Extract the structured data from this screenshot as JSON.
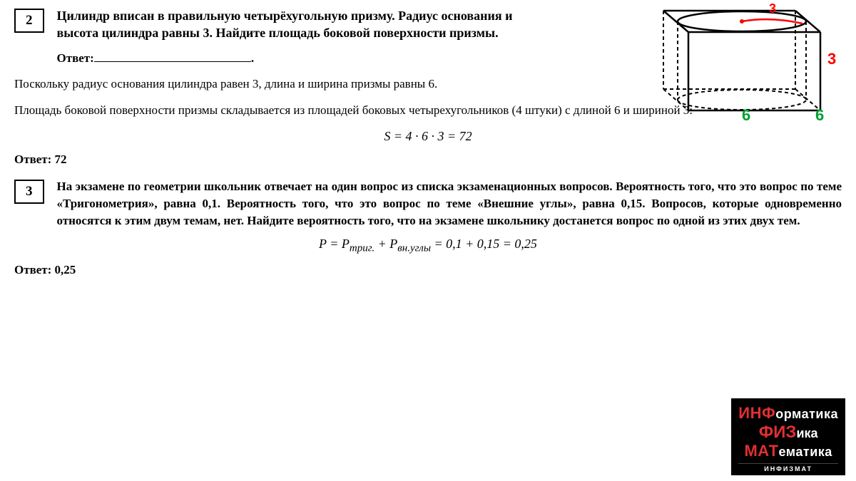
{
  "problem2": {
    "number": "2",
    "text": "Цилиндр вписан в правильную четырёхугольную призму. Радиус основания и высота цилиндра равны 3. Найдите площадь боковой поверхности призмы.",
    "answer_label": "Ответ:",
    "solution_line1": "Поскольку радиус основания цилиндра равен 3, длина и ширина призмы равны 6.",
    "solution_line2": "Площадь боковой поверхности призмы складывается из площадей боковых четырехугольников (4 штуки) с длиной 6 и шириной 3:",
    "formula": "S = 4 · 6 · 3 = 72",
    "final_answer": "Ответ: 72"
  },
  "problem3": {
    "number": "3",
    "text": "На экзамене по геометрии школьник отвечает на один вопрос из списка экзаменационных вопросов. Вероятность того, что это вопрос по теме «Тригонометрия», равна 0,1. Вероятность того, что это вопрос по теме «Внешние углы», равна 0,15. Вопросов, которые одновременно относятся к этим двум темам, нет. Найдите вероятность того, что на экзамене школьнику достанется вопрос по одной из этих двух тем.",
    "formula_html": "P = P<sub>триг.</sub> + P<sub>вн.углы</sub> = 0,1 + 0,15 = 0,25",
    "final_answer": "Ответ: 0,25"
  },
  "diagram": {
    "radius_label": "3",
    "height_label": "3",
    "side_label1": "6",
    "side_label2": "6",
    "red_color": "#ff0000",
    "green_color": "#00a030",
    "line_color": "#000000"
  },
  "logo": {
    "line1_caps": "ИНФ",
    "line1_rest": "орматика",
    "line2_caps": "ФИЗ",
    "line2_rest": "ика",
    "line3_caps": "МАТ",
    "line3_rest": "ематика",
    "sub": "ИНФИЗМАТ"
  }
}
